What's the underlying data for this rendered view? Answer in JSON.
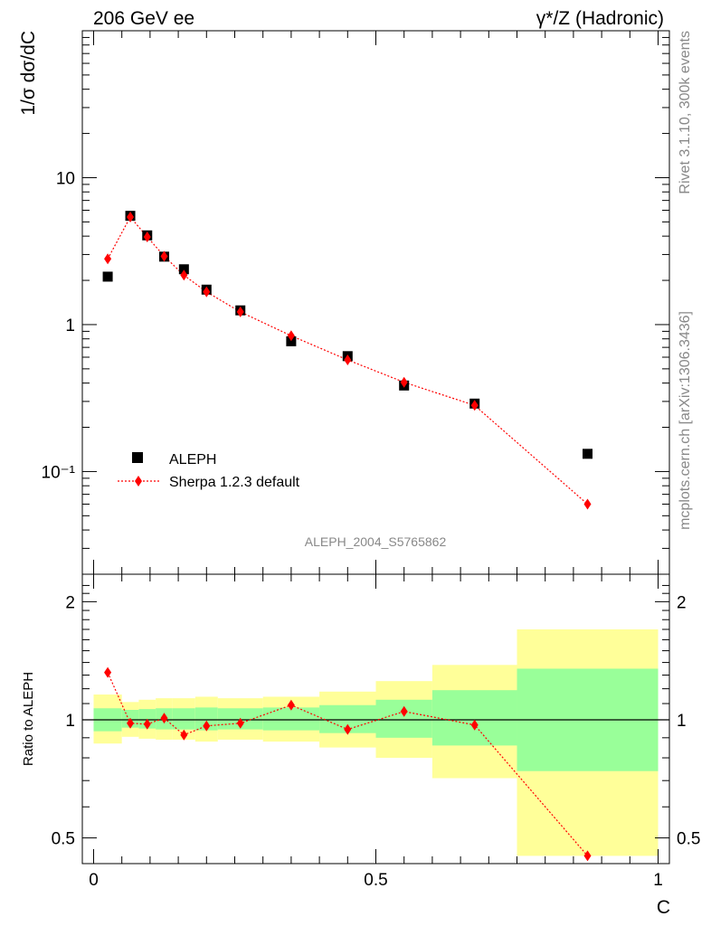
{
  "header": {
    "left": "206 GeV ee",
    "right": "γ*/Z (Hadronic)"
  },
  "side_labels": {
    "rivet": "Rivet 3.1.10,  300k events",
    "mcplots": "mcplots.cern.ch [arXiv:1306.3436]"
  },
  "watermark": "ALEPH_2004_S5765862",
  "chart_data": [
    {
      "panel": "main",
      "type": "scatter",
      "ylabel": "1/σ  dσ/dC",
      "yscale": "log",
      "ylim": [
        0.02,
        100
      ],
      "xlim": [
        -0.02,
        1.02
      ],
      "y_tick_labels": [
        "10",
        "1",
        "10⁻¹"
      ],
      "y_tick_values": [
        10,
        1,
        0.1
      ],
      "legend_placement": "bottom-left",
      "series": [
        {
          "name": "ALEPH",
          "marker": "square",
          "color": "#000000",
          "points": [
            {
              "x": 0.025,
              "y": 2.12
            },
            {
              "x": 0.065,
              "y": 5.5
            },
            {
              "x": 0.095,
              "y": 4.05
            },
            {
              "x": 0.125,
              "y": 2.9
            },
            {
              "x": 0.16,
              "y": 2.38
            },
            {
              "x": 0.2,
              "y": 1.73
            },
            {
              "x": 0.26,
              "y": 1.25
            },
            {
              "x": 0.35,
              "y": 0.77
            },
            {
              "x": 0.45,
              "y": 0.61
            },
            {
              "x": 0.55,
              "y": 0.385
            },
            {
              "x": 0.675,
              "y": 0.29
            },
            {
              "x": 0.875,
              "y": 0.132
            }
          ]
        },
        {
          "name": "Sherpa 1.2.3 default",
          "marker": "diamond",
          "color": "#ff0000",
          "line": "dotted",
          "points": [
            {
              "x": 0.025,
              "y": 2.8
            },
            {
              "x": 0.065,
              "y": 5.4
            },
            {
              "x": 0.095,
              "y": 3.95
            },
            {
              "x": 0.125,
              "y": 2.92
            },
            {
              "x": 0.16,
              "y": 2.17
            },
            {
              "x": 0.2,
              "y": 1.67
            },
            {
              "x": 0.26,
              "y": 1.22
            },
            {
              "x": 0.35,
              "y": 0.84
            },
            {
              "x": 0.45,
              "y": 0.575
            },
            {
              "x": 0.55,
              "y": 0.405
            },
            {
              "x": 0.675,
              "y": 0.282
            },
            {
              "x": 0.875,
              "y": 0.06
            }
          ]
        }
      ]
    },
    {
      "panel": "ratio",
      "type": "line",
      "ylabel": "Ratio to ALEPH",
      "xlabel": "C",
      "yscale": "log",
      "ylim": [
        0.43,
        2.35
      ],
      "xlim": [
        -0.02,
        1.02
      ],
      "x_tick_labels": [
        "0",
        "0.5",
        "1"
      ],
      "x_tick_values": [
        0,
        0.5,
        1
      ],
      "y_tick_labels": [
        "2",
        "1",
        "0.5"
      ],
      "y_tick_values": [
        2,
        1,
        0.5
      ],
      "reference_line": 1,
      "bands": [
        {
          "x0": 0.0,
          "x1": 0.05,
          "inner": [
            0.935,
            1.07
          ],
          "outer": [
            0.87,
            1.16
          ]
        },
        {
          "x0": 0.05,
          "x1": 0.08,
          "inner": [
            0.955,
            1.06
          ],
          "outer": [
            0.905,
            1.11
          ]
        },
        {
          "x0": 0.08,
          "x1": 0.11,
          "inner": [
            0.95,
            1.065
          ],
          "outer": [
            0.895,
            1.125
          ]
        },
        {
          "x0": 0.11,
          "x1": 0.14,
          "inner": [
            0.945,
            1.07
          ],
          "outer": [
            0.89,
            1.135
          ]
        },
        {
          "x0": 0.14,
          "x1": 0.18,
          "inner": [
            0.945,
            1.07
          ],
          "outer": [
            0.89,
            1.135
          ]
        },
        {
          "x0": 0.18,
          "x1": 0.22,
          "inner": [
            0.94,
            1.075
          ],
          "outer": [
            0.88,
            1.145
          ]
        },
        {
          "x0": 0.22,
          "x1": 0.3,
          "inner": [
            0.945,
            1.07
          ],
          "outer": [
            0.89,
            1.135
          ]
        },
        {
          "x0": 0.3,
          "x1": 0.4,
          "inner": [
            0.94,
            1.075
          ],
          "outer": [
            0.88,
            1.145
          ]
        },
        {
          "x0": 0.4,
          "x1": 0.5,
          "inner": [
            0.925,
            1.09
          ],
          "outer": [
            0.85,
            1.18
          ]
        },
        {
          "x0": 0.5,
          "x1": 0.6,
          "inner": [
            0.9,
            1.125
          ],
          "outer": [
            0.8,
            1.255
          ]
        },
        {
          "x0": 0.6,
          "x1": 0.75,
          "inner": [
            0.86,
            1.19
          ],
          "outer": [
            0.71,
            1.38
          ]
        },
        {
          "x0": 0.75,
          "x1": 1.0,
          "inner": [
            0.74,
            1.35
          ],
          "outer": [
            0.45,
            1.7
          ]
        }
      ],
      "series": [
        {
          "name": "Sherpa 1.2.3 default",
          "marker": "diamond",
          "color": "#ff0000",
          "line": "dotted",
          "points": [
            {
              "x": 0.025,
              "y": 1.32
            },
            {
              "x": 0.065,
              "y": 0.98
            },
            {
              "x": 0.095,
              "y": 0.975
            },
            {
              "x": 0.125,
              "y": 1.01
            },
            {
              "x": 0.16,
              "y": 0.915
            },
            {
              "x": 0.2,
              "y": 0.965
            },
            {
              "x": 0.26,
              "y": 0.98
            },
            {
              "x": 0.35,
              "y": 1.09
            },
            {
              "x": 0.45,
              "y": 0.945
            },
            {
              "x": 0.55,
              "y": 1.05
            },
            {
              "x": 0.675,
              "y": 0.97
            },
            {
              "x": 0.875,
              "y": 0.45
            }
          ]
        }
      ]
    }
  ],
  "colors": {
    "inner_band": "#99ff99",
    "outer_band": "#ffff99",
    "model": "#ff0000",
    "data": "#000000",
    "side_text": "#888888"
  }
}
